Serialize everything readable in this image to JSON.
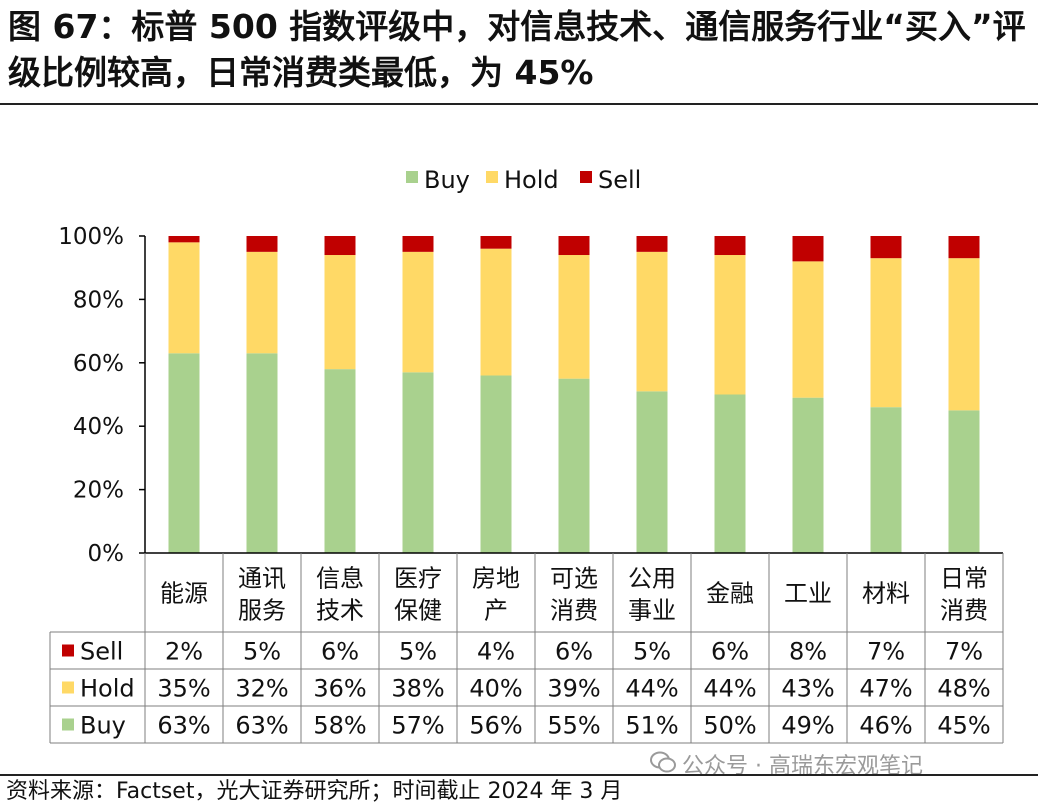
{
  "title": "图 67：标普 500 指数评级中，对信息技术、通信服务行业“买入”评级比例较高，日常消费类最低，为 45%",
  "source": "资料来源：Factset，光大证券研究所；时间截止 2024 年 3 月",
  "watermark": "公众号 · 高瑞东宏观笔记",
  "colors": {
    "buy": "#a9d18e",
    "hold": "#ffd966",
    "sell": "#c00000",
    "axis": "#000000",
    "grid_table": "#7f7f7f"
  },
  "chart_data": {
    "type": "bar",
    "stacked": true,
    "legend_position": "top-center",
    "ylim": [
      0,
      100
    ],
    "yticks": [
      "0%",
      "20%",
      "40%",
      "60%",
      "80%",
      "100%"
    ],
    "yticks_values": [
      0,
      20,
      40,
      60,
      80,
      100
    ],
    "categories": [
      [
        "能源"
      ],
      [
        "通讯",
        "服务"
      ],
      [
        "信息",
        "技术"
      ],
      [
        "医疗",
        "保健"
      ],
      [
        "房地",
        "产"
      ],
      [
        "可选",
        "消费"
      ],
      [
        "公用",
        "事业"
      ],
      [
        "金融"
      ],
      [
        "工业"
      ],
      [
        "材料"
      ],
      [
        "日常",
        "消费"
      ]
    ],
    "series": [
      {
        "name": "Buy",
        "values": [
          63,
          63,
          58,
          57,
          56,
          55,
          51,
          50,
          49,
          46,
          45
        ],
        "labels": [
          "63%",
          "63%",
          "58%",
          "57%",
          "56%",
          "55%",
          "51%",
          "50%",
          "49%",
          "46%",
          "45%"
        ]
      },
      {
        "name": "Hold",
        "values": [
          35,
          32,
          36,
          38,
          40,
          39,
          44,
          44,
          43,
          47,
          48
        ],
        "labels": [
          "35%",
          "32%",
          "36%",
          "38%",
          "40%",
          "39%",
          "44%",
          "44%",
          "43%",
          "47%",
          "48%"
        ]
      },
      {
        "name": "Sell",
        "values": [
          2,
          5,
          6,
          5,
          4,
          6,
          5,
          6,
          8,
          7,
          7
        ],
        "labels": [
          "2%",
          "5%",
          "6%",
          "5%",
          "4%",
          "6%",
          "5%",
          "6%",
          "8%",
          "7%",
          "7%"
        ]
      }
    ],
    "table_row_order": [
      "Sell",
      "Hold",
      "Buy"
    ]
  }
}
